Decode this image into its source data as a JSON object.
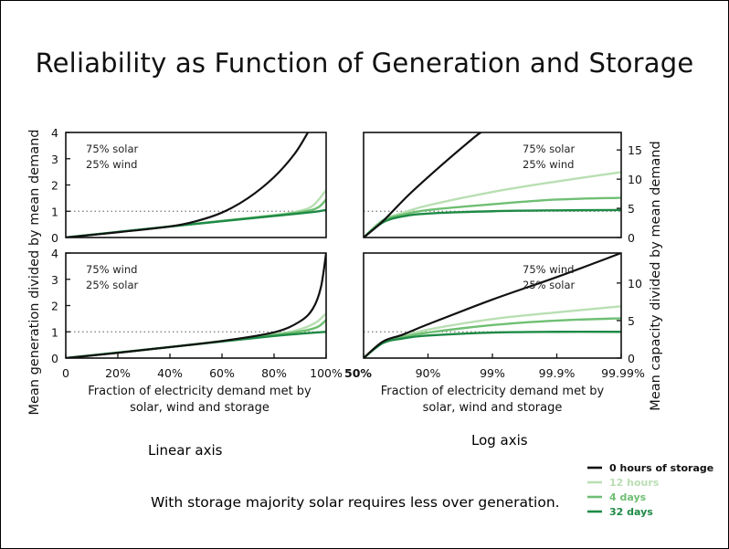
{
  "slide": {
    "title": "Reliability as Function of Generation and Storage",
    "caption_linear": "Linear axis",
    "caption_log": "Log axis",
    "note": "With storage majority solar requires less over generation."
  },
  "colors": {
    "h0": "#111111",
    "h12": "#b9dfb3",
    "d4": "#6fbf73",
    "d32": "#1e8a46",
    "ref": "#777777"
  },
  "chart_data": [
    {
      "id": "linear-top",
      "type": "line",
      "xscale": "linear",
      "mix": [
        "75% solar",
        "25% wind"
      ],
      "xlim": [
        0,
        100
      ],
      "ylim": [
        0,
        4
      ],
      "yticks": [
        0,
        1,
        2,
        3,
        4
      ],
      "reference_y": 1,
      "series": [
        {
          "key": "h0",
          "points": [
            [
              0,
              0
            ],
            [
              20,
              0.2
            ],
            [
              40,
              0.42
            ],
            [
              50,
              0.62
            ],
            [
              60,
              0.95
            ],
            [
              70,
              1.5
            ],
            [
              80,
              2.3
            ],
            [
              88,
              3.2
            ],
            [
              93,
              4.0
            ]
          ]
        },
        {
          "key": "h12",
          "points": [
            [
              0,
              0
            ],
            [
              40,
              0.42
            ],
            [
              80,
              0.85
            ],
            [
              90,
              1.02
            ],
            [
              95,
              1.22
            ],
            [
              100,
              1.8
            ]
          ]
        },
        {
          "key": "d4",
          "points": [
            [
              0,
              0
            ],
            [
              40,
              0.42
            ],
            [
              80,
              0.84
            ],
            [
              92,
              1.0
            ],
            [
              97,
              1.15
            ],
            [
              100,
              1.45
            ]
          ]
        },
        {
          "key": "d32",
          "points": [
            [
              0,
              0
            ],
            [
              40,
              0.42
            ],
            [
              80,
              0.82
            ],
            [
              95,
              0.97
            ],
            [
              100,
              1.05
            ]
          ]
        }
      ]
    },
    {
      "id": "log-top",
      "type": "line",
      "xscale": "log_reliability",
      "mix": [
        "75% solar",
        "25% wind"
      ],
      "xlim": [
        0,
        4
      ],
      "ylim": [
        0,
        18
      ],
      "yticks": [
        0,
        5,
        10,
        15
      ],
      "reference_y": 4.5,
      "series": [
        {
          "key": "h0",
          "points": [
            [
              0,
              0
            ],
            [
              0.3,
              2.8
            ],
            [
              0.7,
              7.3
            ],
            [
              1.2,
              12.3
            ],
            [
              1.7,
              17
            ],
            [
              1.82,
              18
            ]
          ]
        },
        {
          "key": "h12",
          "points": [
            [
              0,
              0
            ],
            [
              0.3,
              3.0
            ],
            [
              0.6,
              4.2
            ],
            [
              1.0,
              5.5
            ],
            [
              2.0,
              7.8
            ],
            [
              3.0,
              9.6
            ],
            [
              4.0,
              11.2
            ]
          ]
        },
        {
          "key": "d4",
          "points": [
            [
              0,
              0
            ],
            [
              0.3,
              2.9
            ],
            [
              0.6,
              3.9
            ],
            [
              1.0,
              4.7
            ],
            [
              2.0,
              5.7
            ],
            [
              3.0,
              6.5
            ],
            [
              4.0,
              6.8
            ]
          ]
        },
        {
          "key": "d32",
          "points": [
            [
              0,
              0
            ],
            [
              0.3,
              2.6
            ],
            [
              0.6,
              3.6
            ],
            [
              1.0,
              4.1
            ],
            [
              2.0,
              4.5
            ],
            [
              3.0,
              4.65
            ],
            [
              4.0,
              4.7
            ]
          ]
        }
      ]
    },
    {
      "id": "linear-bottom",
      "type": "line",
      "xscale": "linear",
      "mix": [
        "75% wind",
        "25% solar"
      ],
      "xlim": [
        0,
        100
      ],
      "ylim": [
        0,
        4
      ],
      "yticks": [
        0,
        1,
        2,
        3,
        4
      ],
      "xticks": [
        "0",
        "20%",
        "40%",
        "60%",
        "80%",
        "100%"
      ],
      "reference_y": 1,
      "xlabel": [
        "Fraction of electricity demand met by",
        "solar, wind and storage"
      ],
      "series": [
        {
          "key": "h0",
          "points": [
            [
              0,
              0
            ],
            [
              20,
              0.2
            ],
            [
              40,
              0.42
            ],
            [
              60,
              0.65
            ],
            [
              80,
              0.98
            ],
            [
              90,
              1.4
            ],
            [
              95,
              1.9
            ],
            [
              98,
              2.7
            ],
            [
              100,
              4.0
            ]
          ]
        },
        {
          "key": "h12",
          "points": [
            [
              0,
              0
            ],
            [
              40,
              0.42
            ],
            [
              80,
              0.9
            ],
            [
              90,
              1.1
            ],
            [
              96,
              1.35
            ],
            [
              100,
              1.7
            ]
          ]
        },
        {
          "key": "d4",
          "points": [
            [
              0,
              0
            ],
            [
              40,
              0.42
            ],
            [
              80,
              0.88
            ],
            [
              92,
              1.05
            ],
            [
              97,
              1.2
            ],
            [
              100,
              1.45
            ]
          ]
        },
        {
          "key": "d32",
          "points": [
            [
              0,
              0
            ],
            [
              40,
              0.42
            ],
            [
              80,
              0.84
            ],
            [
              94,
              0.96
            ],
            [
              100,
              1.0
            ]
          ]
        }
      ]
    },
    {
      "id": "log-bottom",
      "type": "line",
      "xscale": "log_reliability",
      "mix": [
        "75% wind",
        "25% solar"
      ],
      "xlim": [
        0,
        4
      ],
      "ylim": [
        0,
        14
      ],
      "yticks": [
        0,
        5,
        10
      ],
      "xticks": [
        "50%",
        "90%",
        "99%",
        "99.9%",
        "99.99%"
      ],
      "reference_y": 3.5,
      "xlabel": [
        "Fraction of electricity demand met by",
        "solar, wind and storage"
      ],
      "series": [
        {
          "key": "h0",
          "points": [
            [
              0,
              0
            ],
            [
              0.3,
              2.2
            ],
            [
              0.6,
              3.1
            ],
            [
              1.0,
              4.5
            ],
            [
              2.0,
              7.8
            ],
            [
              3.0,
              10.8
            ],
            [
              4.0,
              14.0
            ]
          ]
        },
        {
          "key": "h12",
          "points": [
            [
              0,
              0
            ],
            [
              0.3,
              2.2
            ],
            [
              0.6,
              2.9
            ],
            [
              1.0,
              3.8
            ],
            [
              2.0,
              5.2
            ],
            [
              3.0,
              6.1
            ],
            [
              4.0,
              6.9
            ]
          ]
        },
        {
          "key": "d4",
          "points": [
            [
              0,
              0
            ],
            [
              0.3,
              2.1
            ],
            [
              0.6,
              2.8
            ],
            [
              1.0,
              3.4
            ],
            [
              2.0,
              4.4
            ],
            [
              3.0,
              5.0
            ],
            [
              4.0,
              5.3
            ]
          ]
        },
        {
          "key": "d32",
          "points": [
            [
              0,
              0
            ],
            [
              0.3,
              2.0
            ],
            [
              0.6,
              2.6
            ],
            [
              1.0,
              3.0
            ],
            [
              2.0,
              3.4
            ],
            [
              3.0,
              3.5
            ],
            [
              4.0,
              3.5
            ]
          ]
        }
      ]
    }
  ],
  "axes": {
    "left_ylabel": "Mean generation divided by mean demand",
    "right_ylabel": "Mean capacity divided by mean demand"
  },
  "legend": [
    {
      "key": "h0",
      "label": "0 hours of storage"
    },
    {
      "key": "h12",
      "label": "12 hours"
    },
    {
      "key": "d4",
      "label": "4 days"
    },
    {
      "key": "d32",
      "label": "32 days"
    }
  ]
}
